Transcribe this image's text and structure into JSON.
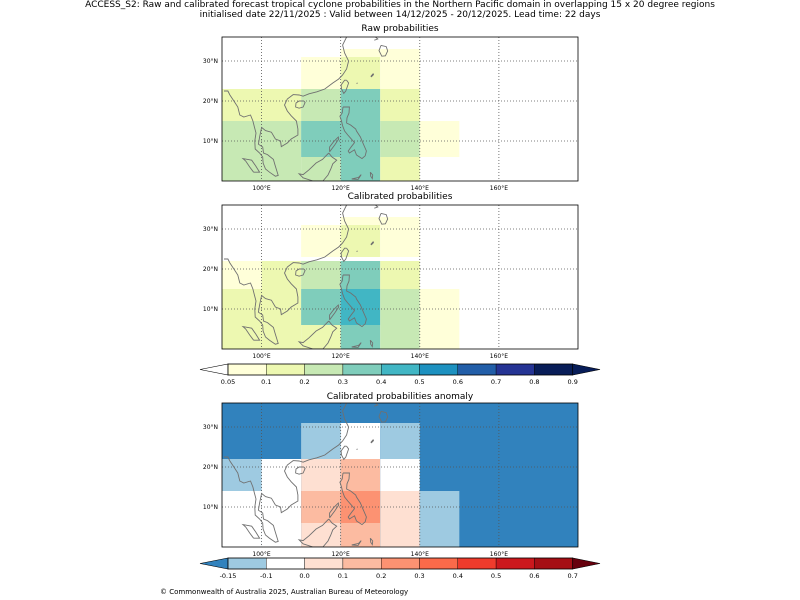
{
  "header": {
    "line1": "ACCESS_S2: Raw and calibrated forecast tropical cyclone probabilities in the Northern Pacific domain in overlapping 15 x 20 degree regions",
    "line2": "initialised date 22/11/2025 :  Valid between 14/12/2025 - 20/12/2025. Lead time: 22 days"
  },
  "axes": {
    "lon_ticks": [
      "100°E",
      "120°E",
      "140°E",
      "160°E"
    ],
    "lat_ticks": [
      "30°N",
      "20°N",
      "10°N"
    ]
  },
  "panels": [
    {
      "title": "Raw probabilities"
    },
    {
      "title": "Calibrated probabilities"
    },
    {
      "title": "Calibrated probabilities anomaly"
    }
  ],
  "colorbars": {
    "probability": {
      "labels": [
        "0.05",
        "0.1",
        "0.2",
        "0.3",
        "0.4",
        "0.5",
        "0.6",
        "0.7",
        "0.8",
        "0.9"
      ],
      "colors": [
        "#ffffd9",
        "#edf8b1",
        "#c7e9b4",
        "#7fcdbb",
        "#41b6c4",
        "#1d91c0",
        "#225ea8",
        "#253494",
        "#081d58"
      ],
      "under_color": "#ffffff",
      "over_color": "#081d58"
    },
    "anomaly": {
      "labels": [
        "-0.15",
        "-0.1",
        "0.0",
        "0.1",
        "0.2",
        "0.3",
        "0.4",
        "0.5",
        "0.6",
        "0.7"
      ],
      "colors": [
        "#9ecae1",
        "#ffffff",
        "#fee0d2",
        "#fcbba1",
        "#fc9272",
        "#fb6a4a",
        "#ef3b2c",
        "#cb181d",
        "#a50f15"
      ],
      "under_color": "#3182bd",
      "over_color": "#67000d"
    }
  },
  "chart_data": [
    {
      "type": "heatmap",
      "title": "Raw probabilities",
      "xlabel": "",
      "ylabel": "",
      "xlim": [
        90,
        180
      ],
      "ylim": [
        0,
        36
      ],
      "cells": [
        {
          "lon": [
            110,
            120
          ],
          "lat": [
            23,
            31
          ],
          "value": 0.08
        },
        {
          "lon": [
            120,
            130
          ],
          "lat": [
            31,
            33
          ],
          "value": 0.08
        },
        {
          "lon": [
            120,
            130
          ],
          "lat": [
            23,
            31
          ],
          "value": 0.15
        },
        {
          "lon": [
            130,
            140
          ],
          "lat": [
            23,
            33
          ],
          "value": 0.08
        },
        {
          "lon": [
            90,
            110
          ],
          "lat": [
            15,
            23
          ],
          "value": 0.15
        },
        {
          "lon": [
            110,
            120
          ],
          "lat": [
            15,
            23
          ],
          "value": 0.25
        },
        {
          "lon": [
            120,
            130
          ],
          "lat": [
            15,
            23
          ],
          "value": 0.35
        },
        {
          "lon": [
            130,
            140
          ],
          "lat": [
            15,
            23
          ],
          "value": 0.15
        },
        {
          "lon": [
            90,
            110
          ],
          "lat": [
            0,
            15
          ],
          "value": 0.25
        },
        {
          "lon": [
            110,
            130
          ],
          "lat": [
            6,
            15
          ],
          "value": 0.35
        },
        {
          "lon": [
            110,
            120
          ],
          "lat": [
            0,
            6
          ],
          "value": 0.25
        },
        {
          "lon": [
            120,
            130
          ],
          "lat": [
            0,
            6
          ],
          "value": 0.35
        },
        {
          "lon": [
            130,
            140
          ],
          "lat": [
            6,
            15
          ],
          "value": 0.25
        },
        {
          "lon": [
            130,
            140
          ],
          "lat": [
            0,
            6
          ],
          "value": 0.15
        },
        {
          "lon": [
            140,
            150
          ],
          "lat": [
            6,
            15
          ],
          "value": 0.08
        }
      ]
    },
    {
      "type": "heatmap",
      "title": "Calibrated probabilities",
      "xlabel": "",
      "ylabel": "",
      "xlim": [
        90,
        180
      ],
      "ylim": [
        0,
        36
      ],
      "cells": [
        {
          "lon": [
            110,
            120
          ],
          "lat": [
            23,
            31
          ],
          "value": 0.08
        },
        {
          "lon": [
            120,
            130
          ],
          "lat": [
            31,
            33
          ],
          "value": 0.08
        },
        {
          "lon": [
            120,
            130
          ],
          "lat": [
            23,
            31
          ],
          "value": 0.15
        },
        {
          "lon": [
            130,
            140
          ],
          "lat": [
            23,
            33
          ],
          "value": 0.08
        },
        {
          "lon": [
            90,
            100
          ],
          "lat": [
            15,
            22
          ],
          "value": 0.08
        },
        {
          "lon": [
            100,
            110
          ],
          "lat": [
            15,
            22
          ],
          "value": 0.15
        },
        {
          "lon": [
            110,
            120
          ],
          "lat": [
            15,
            22
          ],
          "value": 0.25
        },
        {
          "lon": [
            120,
            130
          ],
          "lat": [
            15,
            22
          ],
          "value": 0.35
        },
        {
          "lon": [
            130,
            140
          ],
          "lat": [
            15,
            22
          ],
          "value": 0.15
        },
        {
          "lon": [
            90,
            110
          ],
          "lat": [
            0,
            15
          ],
          "value": 0.15
        },
        {
          "lon": [
            110,
            120
          ],
          "lat": [
            6,
            15
          ],
          "value": 0.35
        },
        {
          "lon": [
            120,
            130
          ],
          "lat": [
            6,
            15
          ],
          "value": 0.45
        },
        {
          "lon": [
            110,
            120
          ],
          "lat": [
            0,
            6
          ],
          "value": 0.15
        },
        {
          "lon": [
            120,
            130
          ],
          "lat": [
            0,
            6
          ],
          "value": 0.35
        },
        {
          "lon": [
            130,
            140
          ],
          "lat": [
            0,
            15
          ],
          "value": 0.25
        },
        {
          "lon": [
            140,
            150
          ],
          "lat": [
            0,
            15
          ],
          "value": 0.08
        }
      ]
    },
    {
      "type": "heatmap",
      "title": "Calibrated probabilities anomaly",
      "xlabel": "",
      "ylabel": "",
      "xlim": [
        90,
        180
      ],
      "ylim": [
        0,
        36
      ],
      "background_value": -0.2,
      "cells": [
        {
          "lon": [
            110,
            120
          ],
          "lat": [
            22,
            31
          ],
          "value": -0.12
        },
        {
          "lon": [
            120,
            130
          ],
          "lat": [
            22,
            31
          ],
          "value": -0.05
        },
        {
          "lon": [
            130,
            140
          ],
          "lat": [
            22,
            31
          ],
          "value": -0.12
        },
        {
          "lon": [
            90,
            100
          ],
          "lat": [
            14,
            22
          ],
          "value": -0.12
        },
        {
          "lon": [
            100,
            110
          ],
          "lat": [
            0,
            22
          ],
          "value": -0.05
        },
        {
          "lon": [
            90,
            100
          ],
          "lat": [
            0,
            14
          ],
          "value": -0.05
        },
        {
          "lon": [
            110,
            120
          ],
          "lat": [
            14,
            22
          ],
          "value": 0.05
        },
        {
          "lon": [
            120,
            130
          ],
          "lat": [
            14,
            22
          ],
          "value": 0.15
        },
        {
          "lon": [
            130,
            140
          ],
          "lat": [
            14,
            22
          ],
          "value": -0.05
        },
        {
          "lon": [
            110,
            120
          ],
          "lat": [
            6,
            14
          ],
          "value": 0.15
        },
        {
          "lon": [
            120,
            130
          ],
          "lat": [
            6,
            14
          ],
          "value": 0.25
        },
        {
          "lon": [
            110,
            120
          ],
          "lat": [
            0,
            6
          ],
          "value": 0.05
        },
        {
          "lon": [
            120,
            130
          ],
          "lat": [
            0,
            6
          ],
          "value": 0.15
        },
        {
          "lon": [
            130,
            140
          ],
          "lat": [
            0,
            14
          ],
          "value": 0.05
        },
        {
          "lon": [
            140,
            150
          ],
          "lat": [
            0,
            14
          ],
          "value": -0.12
        }
      ]
    }
  ],
  "footer": "© Commonwealth of Australia 2025, Australian Bureau of Meteorology"
}
